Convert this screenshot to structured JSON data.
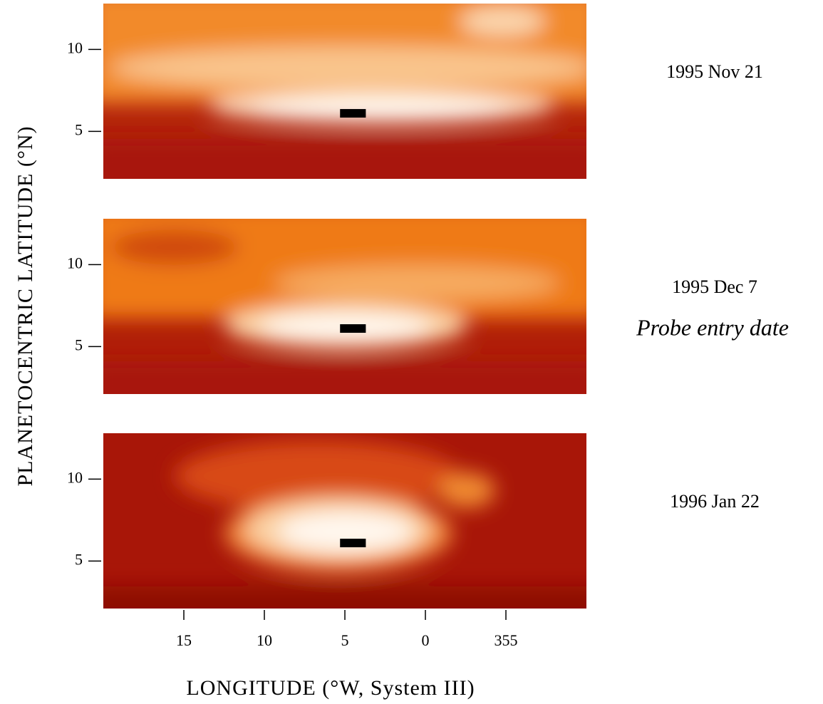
{
  "chart_data": [
    {
      "type": "heatmap",
      "title": "1995 Nov 21",
      "xlim": [
        20,
        -10
      ],
      "ylim": [
        2.1,
        12.8
      ],
      "yticks": [
        5,
        10
      ],
      "marker": {
        "lon": [
          5.3,
          3.7
        ],
        "lat": 6.1
      }
    },
    {
      "type": "heatmap",
      "title": "1995 Dec 7",
      "subtitle": "Probe entry date",
      "ylabel": "PLANETOCENTRIC LATITUDE (°N)",
      "xlim": [
        20,
        -10
      ],
      "ylim": [
        2.1,
        12.8
      ],
      "yticks": [
        5,
        10
      ],
      "marker": {
        "lon": [
          5.3,
          3.7
        ],
        "lat": 6.1
      }
    },
    {
      "type": "heatmap",
      "title": "1996 Jan 22",
      "xlabel": "LONGITUDE (°W, System III)",
      "xlim": [
        20,
        -10
      ],
      "ylim": [
        2.1,
        12.8
      ],
      "yticks": [
        5,
        10
      ],
      "xticks": [
        15,
        10,
        5,
        0,
        {
          "value": -5,
          "label": "355"
        }
      ],
      "marker": {
        "lon": [
          5.3,
          3.7
        ],
        "lat": 6.1
      }
    }
  ]
}
